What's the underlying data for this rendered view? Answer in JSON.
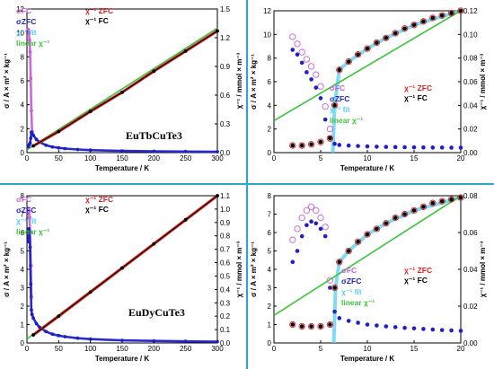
{
  "colors": {
    "sigmaFC": "#c85fd8",
    "sigmaZFC": "#1f1fc8",
    "chiFit": "#56d0f0",
    "linearChi": "#3ac43a",
    "chiInvZFC": "#e01f1f",
    "chiInvFC": "#000000",
    "divider": "#2aa8c9"
  },
  "chart_data": [
    {
      "id": "tb-full",
      "type": "scatter",
      "compound": "EuTbCuTe3",
      "xlabel": "Temperature / K",
      "ylabel_left": "σ / A × m² × kg⁻¹",
      "ylabel_right": "χ⁻¹ / mmol × m⁻³",
      "xlim": [
        0,
        300
      ],
      "ylim_left": [
        0,
        12
      ],
      "ylim_right": [
        0,
        1.5
      ],
      "xticks": [
        "0",
        "50",
        "100",
        "150",
        "200",
        "250",
        "300"
      ],
      "yticks_left": [
        "0",
        "2",
        "4",
        "6",
        "8",
        "10",
        "12"
      ],
      "yticks_right": [
        "0.0",
        "0.3",
        "0.6",
        "0.9",
        "1.2",
        "1.5"
      ],
      "legend": [
        {
          "key": "sigmaFC",
          "text": "σFC"
        },
        {
          "key": "sigmaZFC",
          "text": "σZFC"
        },
        {
          "key": "chiFit",
          "text": "χ⁻¹ fit"
        },
        {
          "key": "linearChi",
          "text": "linear χ⁻¹"
        },
        {
          "key": "chiInvZFC",
          "text": "χ⁻¹ ZFC"
        },
        {
          "key": "chiInvFC",
          "text": "χ⁻¹ FC"
        }
      ],
      "series": [
        {
          "key": "sigmaFC",
          "axis": "left",
          "x": [
            2,
            3,
            4,
            5,
            6,
            7,
            8
          ],
          "y": [
            10.3,
            10.0,
            9.4,
            8.4,
            6.2,
            3.5,
            1.8
          ]
        },
        {
          "key": "sigmaZFC",
          "axis": "left",
          "x": [
            2,
            3,
            4,
            5,
            6,
            7,
            8,
            10,
            15,
            20,
            30,
            40,
            50,
            60,
            80,
            100,
            150,
            200,
            250,
            300
          ],
          "y": [
            0.5,
            0.6,
            0.7,
            0.8,
            1.2,
            1.7,
            1.65,
            1.45,
            1.1,
            0.88,
            0.62,
            0.48,
            0.4,
            0.34,
            0.26,
            0.21,
            0.14,
            0.11,
            0.09,
            0.075
          ]
        },
        {
          "key": "chiInvZFC",
          "axis": "right",
          "x": [
            10,
            50,
            100,
            150,
            200,
            250,
            300
          ],
          "y": [
            0.07,
            0.22,
            0.43,
            0.63,
            0.85,
            1.06,
            1.27
          ]
        },
        {
          "key": "chiInvFC",
          "axis": "right",
          "x": [
            10,
            50,
            100,
            150,
            200,
            250,
            300
          ],
          "y": [
            0.07,
            0.22,
            0.43,
            0.63,
            0.85,
            1.06,
            1.27
          ]
        },
        {
          "key": "linearChi",
          "axis": "right",
          "line": true,
          "x": [
            0,
            300
          ],
          "y": [
            0.03,
            1.3
          ]
        }
      ]
    },
    {
      "id": "tb-zoom",
      "type": "scatter",
      "xlabel": "Temperature / K",
      "ylabel_left": "σ / A × m² × kg⁻¹",
      "ylabel_right": "χ⁻¹ / mmol × m⁻³",
      "xlim": [
        0,
        20
      ],
      "ylim_left": [
        0,
        12
      ],
      "ylim_right": [
        0,
        0.12
      ],
      "xticks": [
        "0",
        "5",
        "10",
        "15",
        "20"
      ],
      "yticks_left": [
        "0",
        "2",
        "4",
        "6",
        "8",
        "10",
        "12"
      ],
      "yticks_right": [
        "0.00",
        "0.02",
        "0.04",
        "0.06",
        "0.08",
        "0.10",
        "0.12"
      ],
      "legend": [
        {
          "key": "sigmaFC",
          "text": "σFC"
        },
        {
          "key": "sigmaZFC",
          "text": "σZFC"
        },
        {
          "key": "chiFit",
          "text": "χ⁻¹ fit"
        },
        {
          "key": "linearChi",
          "text": "linear χ⁻¹"
        },
        {
          "key": "chiInvZFC",
          "text": "χ⁻¹ ZFC"
        },
        {
          "key": "chiInvFC",
          "text": "χ⁻¹ FC"
        }
      ],
      "series": [
        {
          "key": "sigmaFC",
          "axis": "left",
          "hollow": true,
          "x": [
            2,
            2.5,
            3,
            3.5,
            4,
            4.5,
            5,
            5.5,
            6
          ],
          "y": [
            9.8,
            9.2,
            8.5,
            7.9,
            7.3,
            6.6,
            5.6,
            3.9,
            2.0
          ]
        },
        {
          "key": "sigmaZFC",
          "axis": "left",
          "x": [
            2,
            2.5,
            3,
            3.5,
            4,
            4.5,
            5,
            5.5,
            6,
            6.5,
            7,
            8,
            9,
            10,
            11,
            12,
            13,
            14,
            15,
            16,
            17,
            18,
            19,
            20
          ],
          "y": [
            8.7,
            8.3,
            7.6,
            6.8,
            6.2,
            5.5,
            4.6,
            2.8,
            1.3,
            0.75,
            0.65,
            0.6,
            0.56,
            0.53,
            0.5,
            0.48,
            0.47,
            0.46,
            0.45,
            0.44,
            0.43,
            0.43,
            0.42,
            0.42
          ]
        },
        {
          "key": "chiInvZFC",
          "axis": "right",
          "hollow": true,
          "x": [
            2,
            3,
            4,
            5,
            6,
            6.5,
            7,
            8,
            9,
            10,
            11,
            12,
            13,
            14,
            15,
            16,
            17,
            18,
            19,
            20
          ],
          "y": [
            0.006,
            0.006,
            0.007,
            0.009,
            0.012,
            0.04,
            0.07,
            0.077,
            0.083,
            0.088,
            0.093,
            0.097,
            0.101,
            0.105,
            0.108,
            0.111,
            0.114,
            0.116,
            0.118,
            0.12
          ]
        },
        {
          "key": "chiInvFC",
          "axis": "right",
          "x": [
            2,
            3,
            4,
            5,
            6,
            6.5,
            7,
            8,
            9,
            10,
            11,
            12,
            13,
            14,
            15,
            16,
            17,
            18,
            19,
            20
          ],
          "y": [
            0.006,
            0.006,
            0.007,
            0.009,
            0.012,
            0.04,
            0.07,
            0.077,
            0.083,
            0.088,
            0.093,
            0.097,
            0.101,
            0.105,
            0.108,
            0.111,
            0.114,
            0.116,
            0.118,
            0.12
          ]
        },
        {
          "key": "chiFit",
          "axis": "right",
          "line": true,
          "x": [
            6.3,
            6.5,
            7,
            8,
            10,
            12,
            15,
            20
          ],
          "y": [
            0,
            0.04,
            0.07,
            0.077,
            0.088,
            0.097,
            0.108,
            0.12
          ]
        },
        {
          "key": "linearChi",
          "axis": "right",
          "line": true,
          "x": [
            0,
            20
          ],
          "y": [
            0.027,
            0.12
          ]
        }
      ]
    },
    {
      "id": "dy-full",
      "type": "scatter",
      "compound": "EuDyCuTe3",
      "xlabel": "Temperature / K",
      "ylabel_left": "σ / A × m² × kg⁻¹",
      "ylabel_right": "χ⁻¹ / mmol × m⁻³",
      "xlim": [
        0,
        300
      ],
      "ylim_left": [
        0,
        8
      ],
      "ylim_right": [
        0,
        1.1
      ],
      "xticks": [
        "0",
        "50",
        "100",
        "150",
        "200",
        "250",
        "300"
      ],
      "yticks_left": [
        "0",
        "1",
        "2",
        "3",
        "4",
        "5",
        "6",
        "7",
        "8"
      ],
      "yticks_right": [
        "0.0",
        "0.1",
        "0.2",
        "0.3",
        "0.4",
        "0.5",
        "0.6",
        "0.7",
        "0.8",
        "0.9",
        "1.0",
        "1.1"
      ],
      "legend": [
        {
          "key": "sigmaFC",
          "text": "σFC"
        },
        {
          "key": "sigmaZFC",
          "text": "σZFC"
        },
        {
          "key": "chiFit",
          "text": "χ⁻¹ fit"
        },
        {
          "key": "linearChi",
          "text": "linear χ⁻¹"
        },
        {
          "key": "chiInvZFC",
          "text": "χ⁻¹ ZFC"
        },
        {
          "key": "chiInvFC",
          "text": "χ⁻¹ FC"
        }
      ],
      "series": [
        {
          "key": "sigmaFC",
          "axis": "left",
          "hollow": true,
          "x": [
            2,
            3,
            4,
            5,
            6,
            7
          ],
          "y": [
            7.3,
            7.1,
            6.8,
            6.0,
            4.2,
            2.5
          ]
        },
        {
          "key": "sigmaZFC",
          "axis": "left",
          "x": [
            2,
            3,
            4,
            5,
            6,
            7,
            8,
            10,
            15,
            20,
            30,
            40,
            50,
            60,
            80,
            100,
            150,
            200,
            250,
            300
          ],
          "y": [
            5.5,
            6.2,
            6.0,
            5.2,
            3.2,
            1.8,
            1.55,
            1.35,
            1.05,
            0.85,
            0.62,
            0.48,
            0.4,
            0.34,
            0.26,
            0.21,
            0.14,
            0.11,
            0.09,
            0.075
          ]
        },
        {
          "key": "chiInvZFC",
          "axis": "right",
          "x": [
            10,
            50,
            100,
            150,
            200,
            250,
            300
          ],
          "y": [
            0.06,
            0.2,
            0.38,
            0.56,
            0.74,
            0.92,
            1.1
          ]
        },
        {
          "key": "chiInvFC",
          "axis": "right",
          "x": [
            10,
            50,
            100,
            150,
            200,
            250,
            300
          ],
          "y": [
            0.06,
            0.2,
            0.38,
            0.56,
            0.74,
            0.92,
            1.1
          ]
        },
        {
          "key": "linearChi",
          "axis": "right",
          "line": true,
          "x": [
            0,
            300
          ],
          "y": [
            0.03,
            1.1
          ]
        }
      ]
    },
    {
      "id": "dy-zoom",
      "type": "scatter",
      "xlabel": "Temperature / K",
      "ylabel_left": "σ / A × m² × kg⁻¹",
      "ylabel_right": "χ⁻¹ / mmol × m⁻³",
      "xlim": [
        0,
        20
      ],
      "ylim_left": [
        0,
        8
      ],
      "ylim_right": [
        0,
        0.08
      ],
      "xticks": [
        "0",
        "5",
        "10",
        "15",
        "20"
      ],
      "yticks_left": [
        "0",
        "1",
        "2",
        "3",
        "4",
        "5",
        "6",
        "7",
        "8"
      ],
      "yticks_right": [
        "0.00",
        "0.02",
        "0.04",
        "0.06",
        "0.08"
      ],
      "legend": [
        {
          "key": "sigmaFC",
          "text": "σFC"
        },
        {
          "key": "sigmaZFC",
          "text": "σZFC"
        },
        {
          "key": "chiFit",
          "text": "χ⁻¹ fit"
        },
        {
          "key": "linearChi",
          "text": "linear χ⁻¹"
        },
        {
          "key": "chiInvZFC",
          "text": "χ⁻¹ ZFC"
        },
        {
          "key": "chiInvFC",
          "text": "χ⁻¹ FC"
        }
      ],
      "series": [
        {
          "key": "sigmaFC",
          "axis": "left",
          "hollow": true,
          "x": [
            2,
            2.5,
            3,
            3.5,
            4,
            4.5,
            5,
            5.5,
            6
          ],
          "y": [
            5.6,
            6.2,
            6.8,
            7.2,
            7.4,
            7.2,
            6.8,
            6.3,
            3.4
          ]
        },
        {
          "key": "sigmaZFC",
          "axis": "left",
          "x": [
            2,
            2.5,
            3,
            3.5,
            4,
            4.5,
            5,
            5.5,
            6,
            6.5,
            7,
            8,
            9,
            10,
            11,
            12,
            13,
            14,
            15,
            16,
            17,
            18,
            19,
            20
          ],
          "y": [
            4.4,
            5.0,
            5.8,
            6.4,
            6.6,
            6.5,
            6.2,
            5.8,
            3.0,
            1.7,
            1.35,
            1.2,
            1.1,
            1.0,
            0.95,
            0.9,
            0.86,
            0.82,
            0.79,
            0.76,
            0.73,
            0.7,
            0.68,
            0.66
          ]
        },
        {
          "key": "chiInvZFC",
          "axis": "right",
          "hollow": true,
          "x": [
            2,
            3,
            4,
            5,
            6,
            6.5,
            7,
            8,
            9,
            10,
            11,
            12,
            13,
            14,
            15,
            16,
            17,
            18,
            19,
            20
          ],
          "y": [
            0.01,
            0.009,
            0.009,
            0.009,
            0.01,
            0.03,
            0.044,
            0.05,
            0.055,
            0.059,
            0.062,
            0.065,
            0.068,
            0.07,
            0.072,
            0.074,
            0.076,
            0.077,
            0.078,
            0.079
          ]
        },
        {
          "key": "chiInvFC",
          "axis": "right",
          "x": [
            2,
            3,
            4,
            5,
            6,
            6.5,
            7,
            8,
            9,
            10,
            11,
            12,
            13,
            14,
            15,
            16,
            17,
            18,
            19,
            20
          ],
          "y": [
            0.01,
            0.009,
            0.009,
            0.009,
            0.01,
            0.03,
            0.044,
            0.05,
            0.055,
            0.059,
            0.062,
            0.065,
            0.068,
            0.07,
            0.072,
            0.074,
            0.076,
            0.077,
            0.078,
            0.079
          ]
        },
        {
          "key": "chiFit",
          "axis": "right",
          "line": true,
          "x": [
            6.4,
            6.6,
            7,
            8,
            10,
            12,
            15,
            20
          ],
          "y": [
            0,
            0.03,
            0.044,
            0.05,
            0.059,
            0.065,
            0.072,
            0.079
          ]
        },
        {
          "key": "linearChi",
          "axis": "right",
          "line": true,
          "x": [
            0,
            20
          ],
          "y": [
            0.015,
            0.08
          ]
        }
      ]
    }
  ]
}
